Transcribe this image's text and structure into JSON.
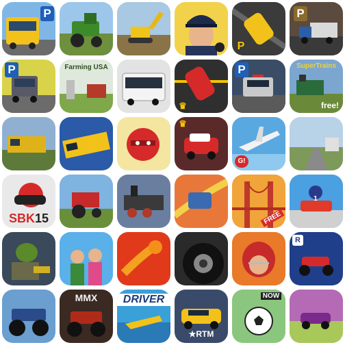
{
  "icons": {
    "parking": "P",
    "farming_usa": "Farming USA",
    "supertrains": "SuperTrains",
    "free_corner": "free!",
    "sbk": "SBK",
    "sbk_year": "15",
    "free_ribbon": "FREE",
    "jersey_number": "1",
    "mmx": "MMX",
    "driver": "DRIVER",
    "rtm": "RTM",
    "now": "NOW",
    "g": "G!",
    "crown": "♛",
    "racer_letter": "R"
  },
  "colors": {
    "parking_blue": "#1f5fb8",
    "parking_yellow": "#f4c400"
  }
}
